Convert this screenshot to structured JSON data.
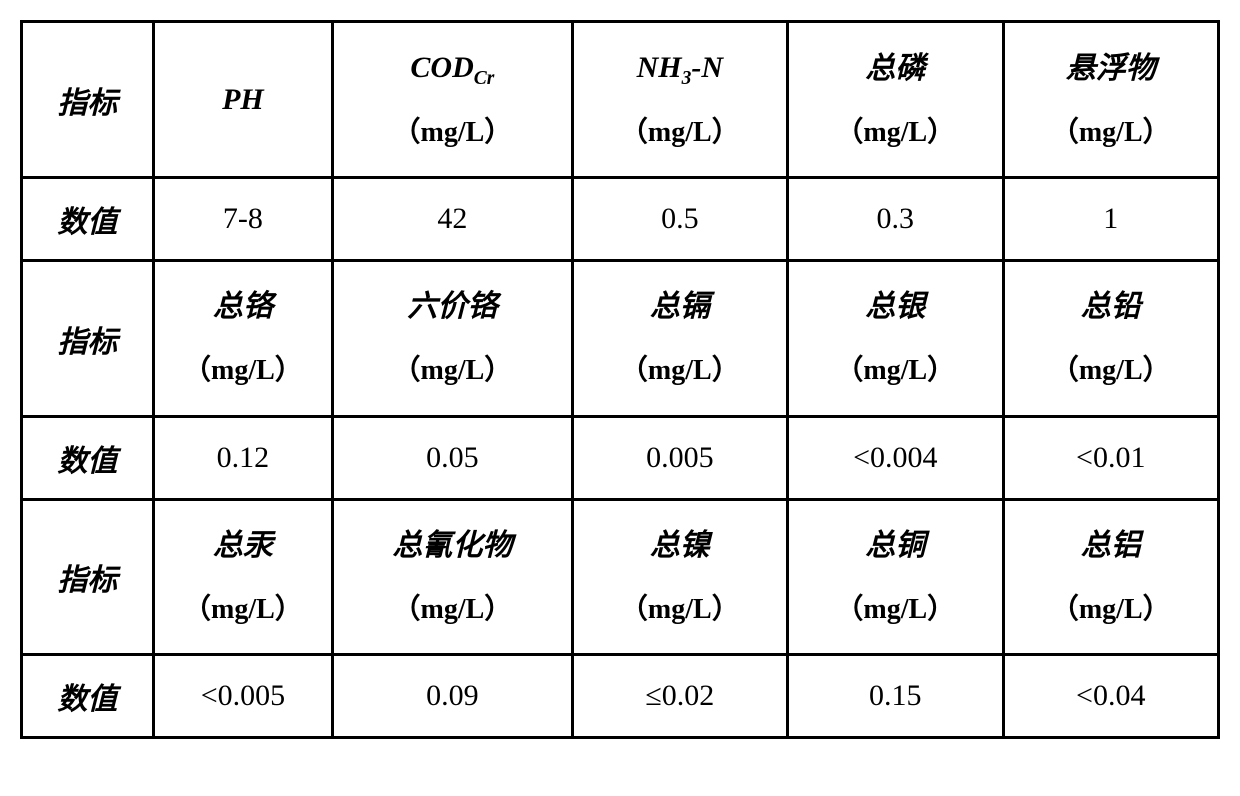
{
  "table": {
    "type": "table",
    "border_color": "#000000",
    "border_width": 3,
    "background_color": "#ffffff",
    "text_color": "#000000",
    "base_fontsize": 30,
    "unit_fontsize": 28,
    "column_widths_pct": [
      11,
      15,
      20,
      18,
      18,
      18
    ],
    "row_label_indicator": "指标",
    "row_label_value": "数值",
    "unit_label": "（mg/L）",
    "sections": [
      {
        "headers": [
          {
            "main": "PH",
            "has_unit": false,
            "sub": ""
          },
          {
            "main": "COD",
            "has_unit": true,
            "sub": "Cr"
          },
          {
            "main": "NH",
            "has_unit": true,
            "sub": "3",
            "suffix": "-N"
          },
          {
            "main": "总磷",
            "has_unit": true,
            "sub": ""
          },
          {
            "main": "悬浮物",
            "has_unit": true,
            "sub": ""
          }
        ],
        "values": [
          "7-8",
          "42",
          "0.5",
          "0.3",
          "1"
        ]
      },
      {
        "headers": [
          {
            "main": "总铬",
            "has_unit": true,
            "sub": ""
          },
          {
            "main": "六价铬",
            "has_unit": true,
            "sub": ""
          },
          {
            "main": "总镉",
            "has_unit": true,
            "sub": ""
          },
          {
            "main": "总银",
            "has_unit": true,
            "sub": ""
          },
          {
            "main": "总铅",
            "has_unit": true,
            "sub": ""
          }
        ],
        "values": [
          "0.12",
          "0.05",
          "0.005",
          "<0.004",
          "<0.01"
        ]
      },
      {
        "headers": [
          {
            "main": "总汞",
            "has_unit": true,
            "sub": ""
          },
          {
            "main": "总氰化物",
            "has_unit": true,
            "sub": ""
          },
          {
            "main": "总镍",
            "has_unit": true,
            "sub": ""
          },
          {
            "main": "总铜",
            "has_unit": true,
            "sub": ""
          },
          {
            "main": "总铝",
            "has_unit": true,
            "sub": ""
          }
        ],
        "values": [
          "<0.005",
          "0.09",
          "≤0.02",
          "0.15",
          "<0.04"
        ]
      }
    ]
  }
}
